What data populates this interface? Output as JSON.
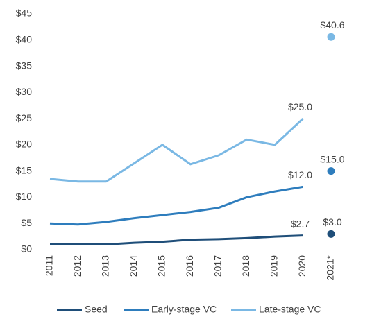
{
  "chart_data": {
    "type": "line",
    "categories": [
      "2011",
      "2012",
      "2013",
      "2014",
      "2015",
      "2016",
      "2017",
      "2018",
      "2019",
      "2020",
      "2021*"
    ],
    "series": [
      {
        "name": "Seed",
        "color": "#1f4e79",
        "values": [
          1.0,
          1.0,
          1.0,
          1.3,
          1.5,
          1.9,
          2.0,
          2.2,
          2.5,
          2.7,
          3.0
        ],
        "value_labels": [
          null,
          null,
          null,
          null,
          null,
          null,
          null,
          null,
          null,
          "$2.7",
          "$3.0"
        ]
      },
      {
        "name": "Early-stage VC",
        "color": "#2e7dbd",
        "values": [
          5.0,
          4.8,
          5.3,
          6.0,
          6.6,
          7.2,
          8.0,
          10.0,
          11.1,
          12.0,
          15.0
        ],
        "value_labels": [
          null,
          null,
          null,
          null,
          null,
          null,
          null,
          null,
          null,
          "$12.0",
          "$15.0"
        ]
      },
      {
        "name": "Late-stage VC",
        "color": "#7ab8e4",
        "values": [
          13.5,
          13.0,
          13.0,
          16.5,
          20.0,
          16.3,
          18.0,
          21.0,
          20.0,
          25.0,
          40.6
        ],
        "value_labels": [
          null,
          null,
          null,
          null,
          null,
          null,
          null,
          null,
          null,
          "$25.0",
          "$40.6"
        ]
      }
    ],
    "ylim": [
      0,
      45
    ],
    "yticks": [
      {
        "value": 0,
        "label": "$0"
      },
      {
        "value": 5,
        "label": "$5"
      },
      {
        "value": 10,
        "label": "$10"
      },
      {
        "value": 15,
        "label": "$15"
      },
      {
        "value": 20,
        "label": "$20"
      },
      {
        "value": 25,
        "label": "$25"
      },
      {
        "value": 30,
        "label": "$30"
      },
      {
        "value": 35,
        "label": "$35"
      },
      {
        "value": 40,
        "label": "$40"
      },
      {
        "value": 45,
        "label": "$45"
      }
    ],
    "grid": false,
    "legend": "bottom"
  }
}
